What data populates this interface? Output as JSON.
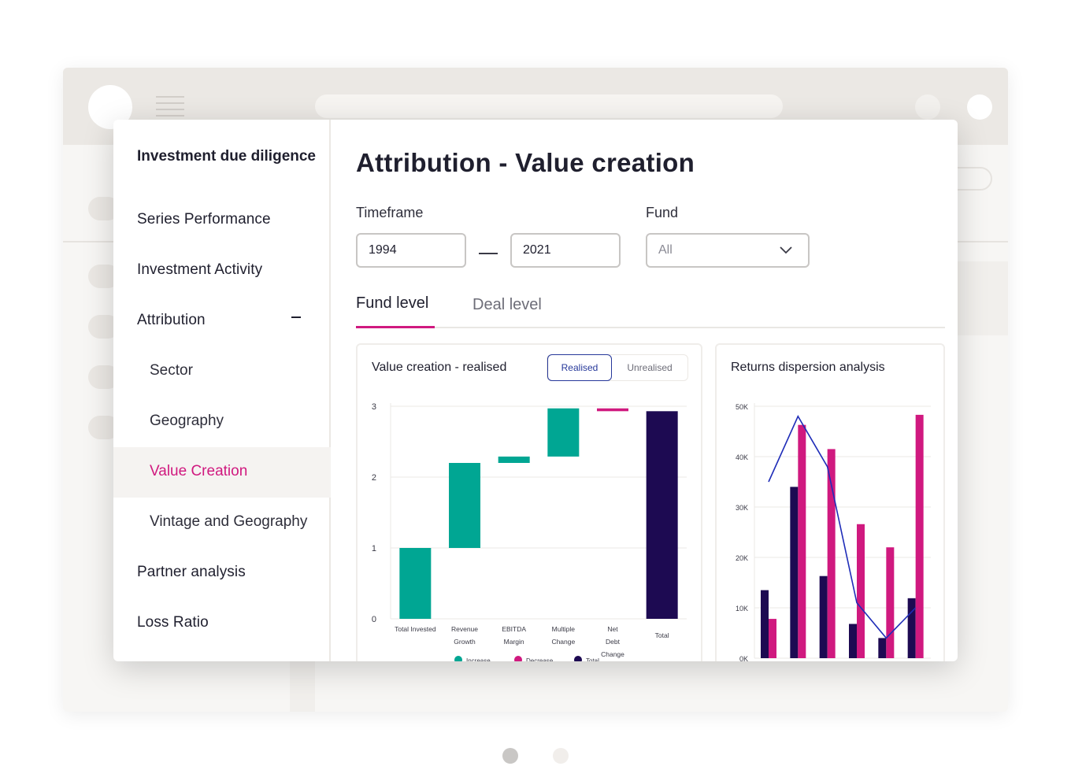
{
  "sidebar": {
    "top": "Investment due diligence",
    "items": [
      {
        "label": "Series Performance"
      },
      {
        "label": "Investment Activity"
      },
      {
        "label": "Attribution"
      },
      {
        "label": "Sector"
      },
      {
        "label": "Geography"
      },
      {
        "label": "Value Creation"
      },
      {
        "label": "Vintage and Geography"
      },
      {
        "label": "Partner analysis"
      },
      {
        "label": "Loss Ratio"
      }
    ],
    "active_color": "#d0197f"
  },
  "page": {
    "title": "Attribution - Value creation",
    "timeframe_label": "Timeframe",
    "from": "1994",
    "to": "2021",
    "fund_label": "Fund",
    "fund_value": "All",
    "tabs": [
      {
        "label": "Fund level"
      },
      {
        "label": "Deal level"
      }
    ]
  },
  "colors": {
    "increase": "#00a693",
    "decrease": "#d0197f",
    "total": "#1d0a52",
    "line": "#1f2db8"
  },
  "chart_data": [
    {
      "type": "bar",
      "title": "Value creation - realised",
      "toggle": {
        "on": "Realised",
        "off": "Unrealised"
      },
      "categories": [
        "Total Invested",
        "Revenue Growth",
        "EBITDA Margin",
        "Multiple Change",
        "Net Debt Change",
        "Total"
      ],
      "bars": [
        {
          "start": 0,
          "end": 1.0,
          "kind": "increase"
        },
        {
          "start": 1.0,
          "end": 2.2,
          "kind": "increase"
        },
        {
          "start": 2.2,
          "end": 2.29,
          "kind": "increase"
        },
        {
          "start": 2.29,
          "end": 2.97,
          "kind": "increase"
        },
        {
          "start": 2.97,
          "end": 2.93,
          "kind": "decrease"
        },
        {
          "start": 0,
          "end": 2.93,
          "kind": "total"
        }
      ],
      "yticks": [
        "0",
        "1",
        "2",
        "3"
      ],
      "ylim": [
        0,
        3
      ],
      "legend": [
        "Increase",
        "Decrease",
        "Total"
      ]
    },
    {
      "type": "bar",
      "title": "Returns dispersion analysis",
      "yticks": [
        "0K",
        "10K",
        "20K",
        "30K",
        "40K",
        "50K"
      ],
      "ylim": [
        0,
        50000
      ],
      "series": [
        {
          "values": [
            13500,
            34000,
            16300,
            6800,
            4000,
            11900
          ]
        },
        {
          "values": [
            7800,
            46300,
            41500,
            26600,
            22000,
            48300
          ]
        }
      ],
      "line": [
        35000,
        48000,
        38000,
        11000,
        4000,
        10000
      ]
    }
  ]
}
